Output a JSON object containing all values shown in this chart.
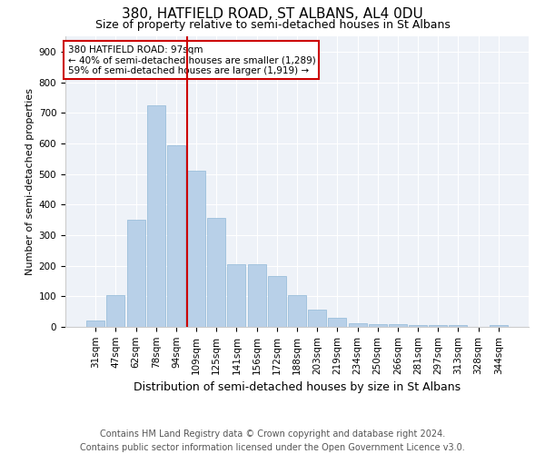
{
  "title1": "380, HATFIELD ROAD, ST ALBANS, AL4 0DU",
  "title2": "Size of property relative to semi-detached houses in St Albans",
  "xlabel": "Distribution of semi-detached houses by size in St Albans",
  "ylabel": "Number of semi-detached properties",
  "bar_labels": [
    "31sqm",
    "47sqm",
    "62sqm",
    "78sqm",
    "94sqm",
    "109sqm",
    "125sqm",
    "141sqm",
    "156sqm",
    "172sqm",
    "188sqm",
    "203sqm",
    "219sqm",
    "234sqm",
    "250sqm",
    "266sqm",
    "281sqm",
    "297sqm",
    "313sqm",
    "328sqm",
    "344sqm"
  ],
  "bar_values": [
    20,
    105,
    350,
    725,
    595,
    510,
    355,
    205,
    205,
    165,
    103,
    55,
    30,
    12,
    8,
    8,
    6,
    5,
    5,
    0,
    5
  ],
  "bar_color": "#b8d0e8",
  "bar_edgecolor": "#90b8d8",
  "vline_x": 4.55,
  "vline_color": "#cc0000",
  "annotation_text": "380 HATFIELD ROAD: 97sqm\n← 40% of semi-detached houses are smaller (1,289)\n59% of semi-detached houses are larger (1,919) →",
  "annotation_box_edgecolor": "#cc0000",
  "ylim": [
    0,
    950
  ],
  "yticks": [
    0,
    100,
    200,
    300,
    400,
    500,
    600,
    700,
    800,
    900
  ],
  "background_color": "#ffffff",
  "plot_bg_color": "#eef2f8",
  "footer": "Contains HM Land Registry data © Crown copyright and database right 2024.\nContains public sector information licensed under the Open Government Licence v3.0.",
  "title1_fontsize": 11,
  "title2_fontsize": 9,
  "xlabel_fontsize": 9,
  "ylabel_fontsize": 8,
  "tick_fontsize": 7.5,
  "annotation_fontsize": 7.5,
  "footer_fontsize": 7
}
